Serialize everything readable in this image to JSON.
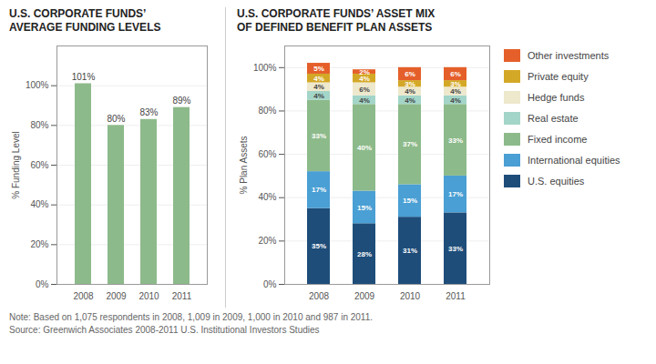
{
  "chart_data": [
    {
      "type": "bar",
      "title": "U.S. CORPORATE FUNDS’",
      "subtitle": "AVERAGE FUNDING LEVELS",
      "ylabel": "% Funding Level",
      "categories": [
        "2008",
        "2009",
        "2010",
        "2011"
      ],
      "values": [
        101,
        80,
        83,
        89
      ],
      "value_labels": [
        "101%",
        "80%",
        "83%",
        "89%"
      ],
      "data_labels": true,
      "color": "#8dba8a",
      "ylim": [
        0,
        120
      ],
      "yticks": [
        {
          "value": 0,
          "label": "0%"
        },
        {
          "value": 20,
          "label": "20%"
        },
        {
          "value": 40,
          "label": "40%"
        },
        {
          "value": 60,
          "label": "60%"
        },
        {
          "value": 80,
          "label": "80%"
        },
        {
          "value": 100,
          "label": "100%"
        }
      ],
      "grid": true
    },
    {
      "type": "bar",
      "title": "U.S. CORPORATE FUNDS’ ASSET MIX",
      "subtitle": "OF DEFINED BENEFIT PLAN ASSETS",
      "ylabel": "% Plan Assets",
      "categories": [
        "2008",
        "2009",
        "2010",
        "2011"
      ],
      "stacked": true,
      "data_labels": true,
      "legend": "right",
      "series": [
        {
          "name": "U.S. equities",
          "color": "#1e4d7a",
          "values": [
            35,
            28,
            31,
            33
          ],
          "value_labels": [
            "35%",
            "28%",
            "31%",
            "33%"
          ]
        },
        {
          "name": "International equities",
          "color": "#4a9fd4",
          "values": [
            17,
            15,
            15,
            17
          ],
          "value_labels": [
            "17%",
            "15%",
            "15%",
            "17%"
          ]
        },
        {
          "name": "Fixed income",
          "color": "#8dba8a",
          "values": [
            33,
            40,
            37,
            33
          ],
          "value_labels": [
            "33%",
            "40%",
            "37%",
            "33%"
          ]
        },
        {
          "name": "Real estate",
          "color": "#a3d5c8",
          "values": [
            4,
            4,
            4,
            4
          ],
          "value_labels": [
            "4%",
            "4%",
            "4%",
            "4%"
          ]
        },
        {
          "name": "Hedge funds",
          "color": "#eee8cc",
          "values": [
            4,
            6,
            4,
            4
          ],
          "value_labels": [
            "4%",
            "6%",
            "4%",
            "4%"
          ]
        },
        {
          "name": "Private equity",
          "color": "#d4a827",
          "values": [
            4,
            4,
            3,
            3
          ],
          "value_labels": [
            "4%",
            "4%",
            "3%",
            "3%"
          ]
        },
        {
          "name": "Other investments",
          "color": "#e55f2a",
          "values": [
            5,
            2,
            6,
            6
          ],
          "value_labels": [
            "5%",
            "2%",
            "6%",
            "6%"
          ]
        }
      ],
      "ylim": [
        0,
        110
      ],
      "yticks": [
        {
          "value": 0,
          "label": "0%"
        },
        {
          "value": 20,
          "label": "20%"
        },
        {
          "value": 40,
          "label": "40%"
        },
        {
          "value": 60,
          "label": "60%"
        },
        {
          "value": 80,
          "label": "80%"
        },
        {
          "value": 100,
          "label": "100%"
        }
      ],
      "grid": true
    }
  ],
  "annotations": [
    "Note: Based on 1,075 respondents in 2008, 1,009 in 2009, 1,000 in 2010 and 987 in 2011.",
    "Source: Greenwich Associates 2008-2011 U.S. Institutional Investors Studies"
  ]
}
